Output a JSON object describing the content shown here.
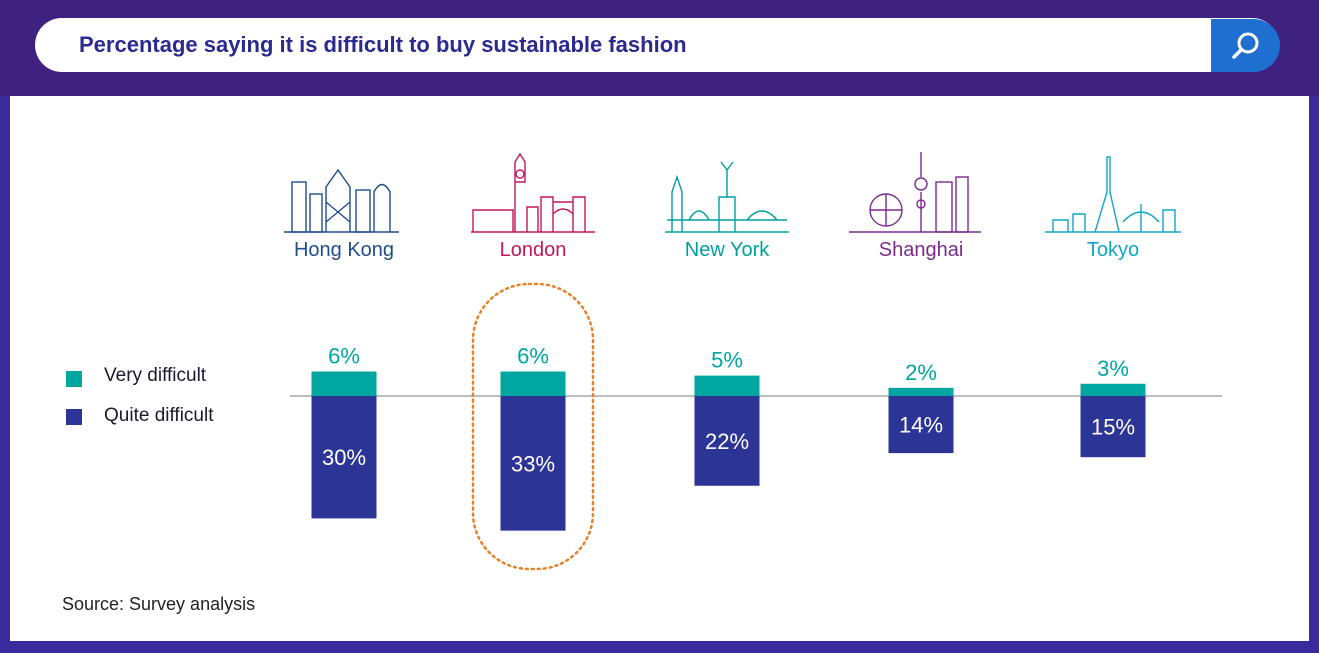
{
  "header": {
    "title": "Percentage saying it is difficult to buy sustainable fashion",
    "search_icon": "search-icon"
  },
  "colors": {
    "very": "#00a6a0",
    "quite": "#2c3595",
    "frame": "#3f2180",
    "highlight": "#e8822a",
    "city": [
      "#1f4e8c",
      "#c2185b",
      "#00a0a0",
      "#7b2a8e",
      "#12a7c6"
    ]
  },
  "legend": {
    "very_label": "Very difficult",
    "quite_label": "Quite difficult"
  },
  "source": "Source: Survey analysis",
  "chart_data": {
    "type": "bar",
    "categories": [
      "Hong Kong",
      "London",
      "New York",
      "Shanghai",
      "Tokyo"
    ],
    "series": [
      {
        "name": "Very difficult",
        "values": [
          6,
          6,
          5,
          2,
          3
        ],
        "labels": [
          "6%",
          "6%",
          "5%",
          "2%",
          "3%"
        ]
      },
      {
        "name": "Quite difficult",
        "values": [
          30,
          33,
          22,
          14,
          15
        ],
        "labels": [
          "30%",
          "33%",
          "22%",
          "14%",
          "15%"
        ]
      }
    ],
    "highlighted": "London"
  }
}
